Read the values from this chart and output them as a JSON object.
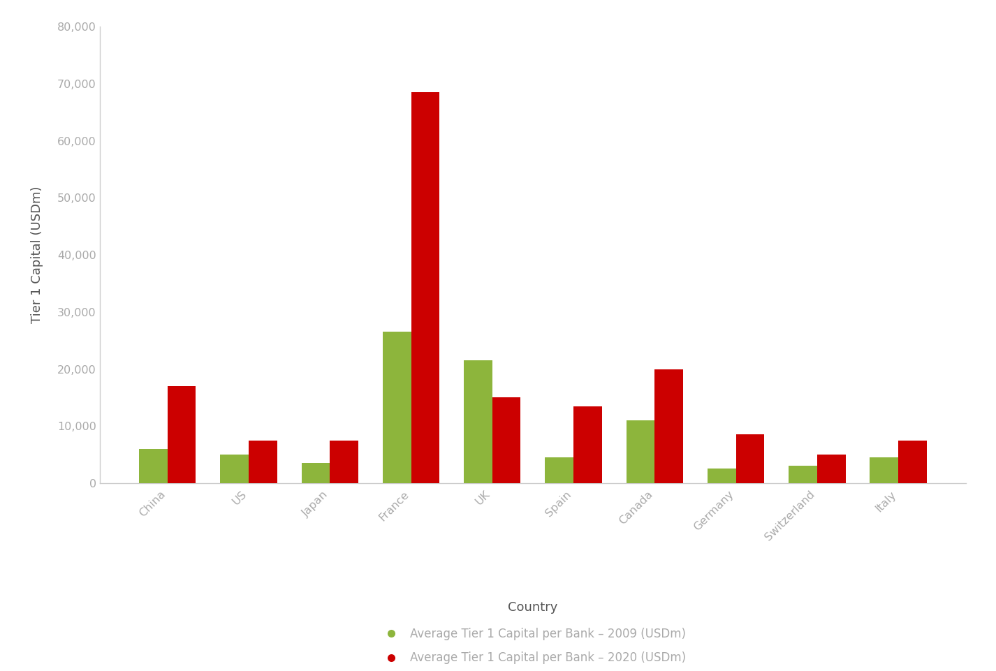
{
  "categories": [
    "China",
    "US",
    "Japan",
    "France",
    "UK",
    "Spain",
    "Canada",
    "Germany",
    "Switzerland",
    "Italy"
  ],
  "values_2009": [
    6000,
    5000,
    3500,
    26500,
    21500,
    4500,
    11000,
    2500,
    3000,
    4500
  ],
  "values_2020": [
    17000,
    7500,
    7500,
    68500,
    15000,
    13500,
    20000,
    8500,
    5000,
    7500
  ],
  "color_2009": "#8db53c",
  "color_2020": "#cc0000",
  "ylabel": "Tier 1 Capital (USDm)",
  "xlabel": "Country",
  "ylim": [
    0,
    80000
  ],
  "yticks": [
    0,
    10000,
    20000,
    30000,
    40000,
    50000,
    60000,
    70000,
    80000
  ],
  "legend_2009": "Average Tier 1 Capital per Bank – 2009 (USDm)",
  "legend_2020": "Average Tier 1 Capital per Bank – 2020 (USDm)",
  "bar_width": 0.35,
  "background_color": "#ffffff",
  "tick_label_color": "#aaaaaa",
  "axis_label_color": "#555555",
  "axis_label_fontsize": 13,
  "tick_fontsize": 11.5,
  "legend_fontsize": 12,
  "spine_color": "#cccccc"
}
